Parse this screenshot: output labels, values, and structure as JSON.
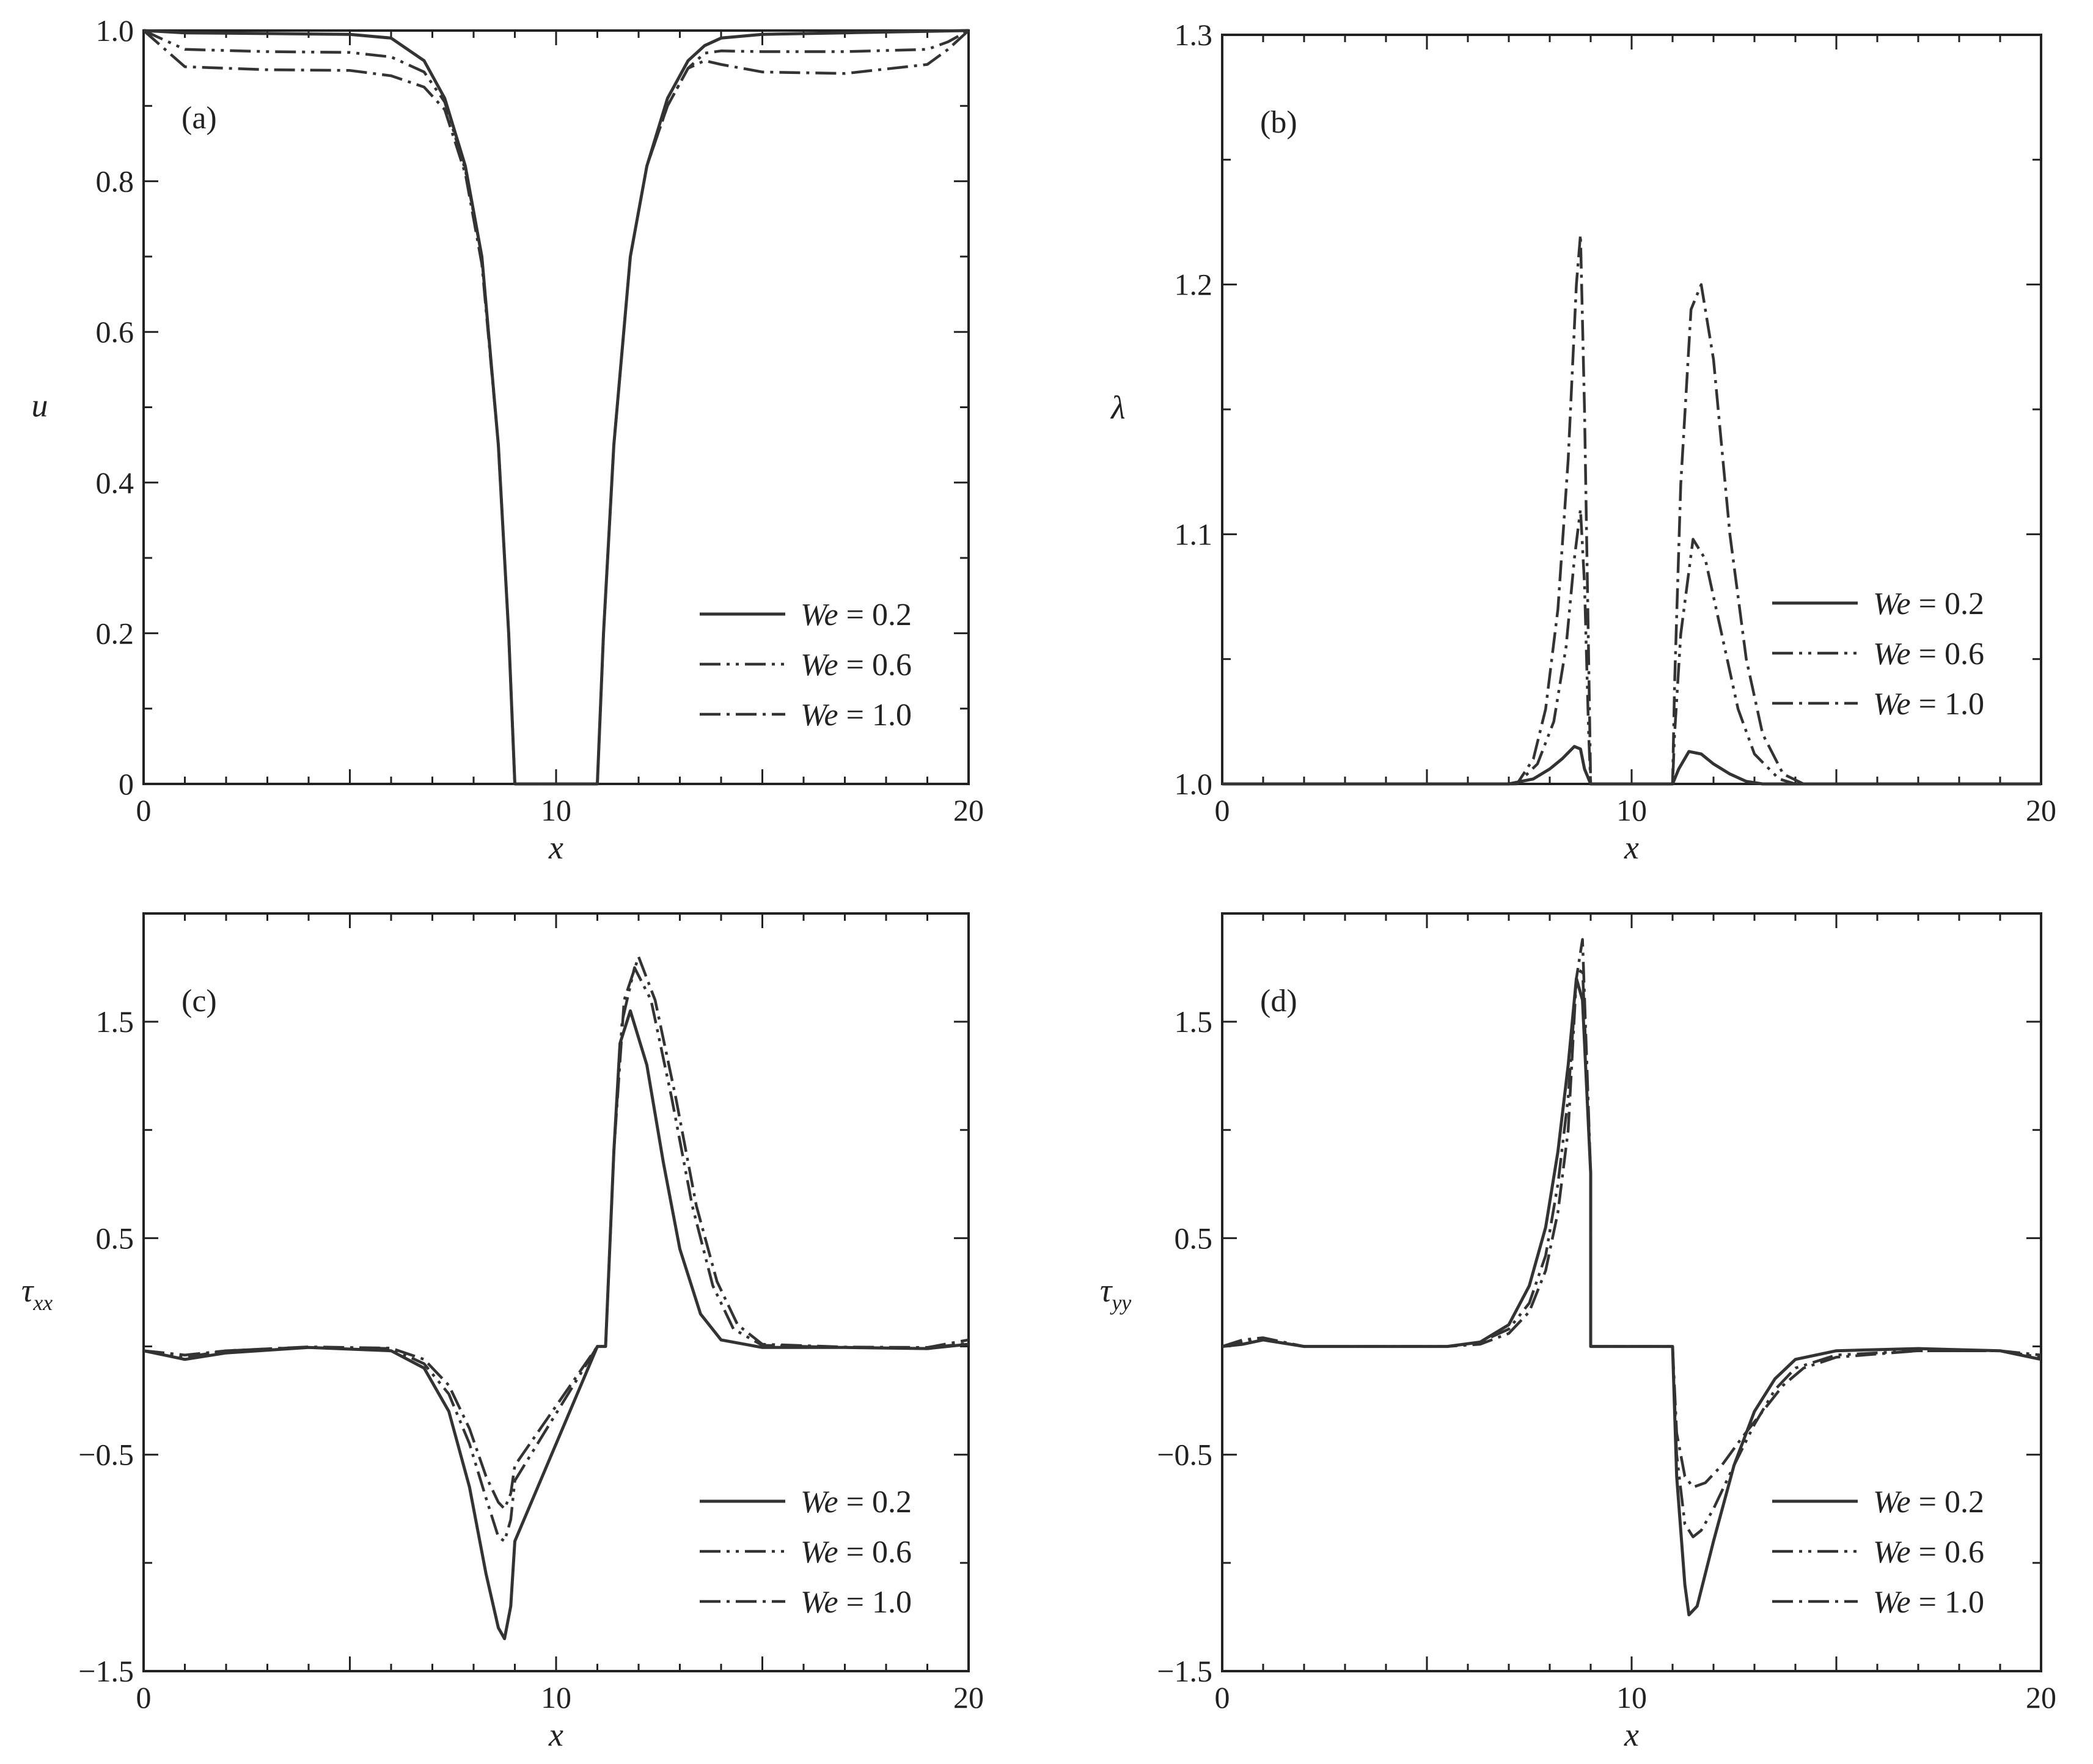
{
  "figure": {
    "legend_prefix": "We",
    "legend_separator": " = "
  },
  "chart_data": [
    {
      "type": "line",
      "panel_label": "(a)",
      "xlabel": "x",
      "ylabel": "u",
      "xlim": [
        0,
        20
      ],
      "ylim": [
        0,
        1.0
      ],
      "xticks": [
        0,
        10,
        20
      ],
      "yticks": [
        0,
        0.2,
        0.4,
        0.6,
        0.8,
        1.0
      ],
      "xtick_labels": [
        "0",
        "10",
        "20"
      ],
      "ytick_labels": [
        "0",
        "0.2",
        "0.4",
        "0.6",
        "0.8",
        "1.0"
      ],
      "legend_position": "bottom-right",
      "grid": false,
      "series": [
        {
          "name": "0.2",
          "dash": "solid",
          "x": [
            0,
            1,
            3,
            5,
            6,
            6.8,
            7.3,
            7.8,
            8.2,
            8.6,
            8.85,
            9.0,
            11.0,
            11.15,
            11.4,
            11.8,
            12.2,
            12.7,
            13.2,
            13.6,
            14,
            15,
            17,
            19,
            20
          ],
          "y": [
            1.0,
            0.997,
            0.996,
            0.995,
            0.99,
            0.96,
            0.91,
            0.82,
            0.7,
            0.45,
            0.2,
            0.0,
            0.0,
            0.2,
            0.45,
            0.7,
            0.82,
            0.91,
            0.96,
            0.98,
            0.99,
            0.995,
            0.997,
            0.999,
            1.0
          ]
        },
        {
          "name": "0.6",
          "dash": "dashdotdot",
          "x": [
            0,
            1,
            3,
            5,
            6,
            6.8,
            7.3,
            7.8,
            8.2,
            8.6,
            8.85,
            9.0,
            11.0,
            11.15,
            11.4,
            11.8,
            12.2,
            12.7,
            13.2,
            13.6,
            14,
            15,
            17,
            19,
            19.5,
            20
          ],
          "y": [
            1.0,
            0.975,
            0.972,
            0.971,
            0.965,
            0.945,
            0.905,
            0.815,
            0.7,
            0.45,
            0.2,
            0.0,
            0.0,
            0.2,
            0.45,
            0.7,
            0.82,
            0.9,
            0.95,
            0.97,
            0.973,
            0.972,
            0.972,
            0.975,
            0.985,
            1.0
          ]
        },
        {
          "name": "1.0",
          "dash": "dashdot",
          "x": [
            0,
            1,
            3,
            5,
            6,
            6.8,
            7.3,
            7.8,
            8.2,
            8.6,
            8.85,
            9.0,
            11.0,
            11.15,
            11.4,
            11.8,
            12.2,
            12.7,
            13.2,
            13.6,
            14,
            15,
            17,
            19,
            19.5,
            20
          ],
          "y": [
            1.0,
            0.952,
            0.948,
            0.947,
            0.94,
            0.925,
            0.895,
            0.81,
            0.69,
            0.45,
            0.2,
            0.0,
            0.0,
            0.2,
            0.45,
            0.7,
            0.82,
            0.9,
            0.95,
            0.96,
            0.955,
            0.945,
            0.943,
            0.955,
            0.975,
            1.0
          ]
        }
      ]
    },
    {
      "type": "line",
      "panel_label": "(b)",
      "xlabel": "x",
      "ylabel": "λ",
      "xlim": [
        0,
        20
      ],
      "ylim": [
        1.0,
        1.3
      ],
      "xticks": [
        0,
        10,
        20
      ],
      "yticks": [
        1.0,
        1.1,
        1.2,
        1.3
      ],
      "xtick_labels": [
        "0",
        "10",
        "20"
      ],
      "ytick_labels": [
        "1.0",
        "1.1",
        "1.2",
        "1.3"
      ],
      "legend_position": "right",
      "grid": false,
      "series": [
        {
          "name": "0.2",
          "dash": "solid",
          "x": [
            0,
            7.0,
            7.6,
            8.0,
            8.3,
            8.6,
            8.75,
            8.85,
            9.0,
            9.0,
            11.0,
            11.0,
            11.15,
            11.4,
            11.7,
            12.0,
            12.4,
            12.8,
            13.2,
            20
          ],
          "y": [
            1.0,
            1.0,
            1.002,
            1.006,
            1.01,
            1.015,
            1.014,
            1.006,
            1.0,
            1.0,
            1.0,
            1.0,
            1.006,
            1.013,
            1.012,
            1.008,
            1.004,
            1.001,
            1.0,
            1.0
          ]
        },
        {
          "name": "0.6",
          "dash": "dashdotdot",
          "x": [
            0,
            7.2,
            7.7,
            8.1,
            8.4,
            8.6,
            8.75,
            8.85,
            8.95,
            9.0,
            11.0,
            11.05,
            11.2,
            11.5,
            11.8,
            12.2,
            12.6,
            13.0,
            13.6,
            14.0,
            20
          ],
          "y": [
            1.0,
            1.0,
            1.008,
            1.025,
            1.055,
            1.09,
            1.11,
            1.08,
            1.02,
            1.0,
            1.0,
            1.02,
            1.06,
            1.098,
            1.09,
            1.06,
            1.03,
            1.012,
            1.002,
            1.0,
            1.0
          ]
        },
        {
          "name": "1.0",
          "dash": "dashdot",
          "x": [
            0,
            7.2,
            7.6,
            7.9,
            8.2,
            8.45,
            8.65,
            8.75,
            8.85,
            8.95,
            9.0,
            11.0,
            11.05,
            11.2,
            11.45,
            11.7,
            12.0,
            12.4,
            12.8,
            13.2,
            13.7,
            14.2,
            20
          ],
          "y": [
            1.0,
            1.0,
            1.01,
            1.03,
            1.07,
            1.13,
            1.2,
            1.22,
            1.15,
            1.05,
            1.0,
            1.0,
            1.04,
            1.12,
            1.19,
            1.2,
            1.17,
            1.1,
            1.05,
            1.02,
            1.004,
            1.0,
            1.0
          ]
        }
      ]
    },
    {
      "type": "line",
      "panel_label": "(c)",
      "xlabel": "x",
      "ylabel": "τ_xx",
      "ylabel_main": "τ",
      "ylabel_sub": "xx",
      "xlim": [
        0,
        20
      ],
      "ylim": [
        -1.5,
        2.0
      ],
      "xticks": [
        0,
        10,
        20
      ],
      "yticks": [
        -1.5,
        -0.5,
        0.5,
        1.5
      ],
      "xtick_labels": [
        "0",
        "10",
        "20"
      ],
      "ytick_labels": [
        "−1.5",
        "−0.5",
        "0.5",
        "1.5"
      ],
      "legend_position": "bottom-right",
      "grid": false,
      "series": [
        {
          "name": "0.2",
          "dash": "solid",
          "x": [
            0,
            0.5,
            1,
            2,
            4,
            6,
            6.8,
            7.4,
            7.9,
            8.3,
            8.6,
            8.75,
            8.9,
            9.0,
            11.0,
            11.2,
            11.4,
            11.55,
            11.8,
            12.2,
            12.6,
            13.0,
            13.5,
            14.0,
            15,
            17,
            19,
            20
          ],
          "y": [
            -0.02,
            -0.04,
            -0.06,
            -0.03,
            -0.005,
            -0.02,
            -0.1,
            -0.3,
            -0.65,
            -1.05,
            -1.3,
            -1.35,
            -1.2,
            -0.9,
            0.0,
            0.0,
            0.9,
            1.4,
            1.55,
            1.3,
            0.85,
            0.45,
            0.15,
            0.03,
            -0.005,
            -0.005,
            -0.01,
            0.01
          ]
        },
        {
          "name": "0.6",
          "dash": "dashdotdot",
          "x": [
            0,
            0.5,
            1,
            2,
            4,
            6,
            6.8,
            7.4,
            7.9,
            8.3,
            8.6,
            8.75,
            8.9,
            9.0,
            11.0,
            11.2,
            11.4,
            11.6,
            11.9,
            12.3,
            12.8,
            13.3,
            13.8,
            14.3,
            15,
            17,
            19,
            20
          ],
          "y": [
            -0.02,
            -0.03,
            -0.05,
            -0.02,
            -0.003,
            -0.01,
            -0.08,
            -0.22,
            -0.45,
            -0.7,
            -0.88,
            -0.9,
            -0.8,
            -0.62,
            0.0,
            0.0,
            0.9,
            1.5,
            1.75,
            1.6,
            1.15,
            0.65,
            0.28,
            0.08,
            0.005,
            -0.005,
            -0.008,
            0.015
          ]
        },
        {
          "name": "1.0",
          "dash": "dashdot",
          "x": [
            0,
            0.5,
            1,
            2,
            4,
            6,
            6.8,
            7.4,
            7.9,
            8.3,
            8.6,
            8.75,
            8.9,
            9.0,
            11.0,
            11.2,
            11.4,
            11.65,
            12.0,
            12.4,
            12.9,
            13.4,
            13.9,
            14.4,
            15,
            17,
            19,
            20
          ],
          "y": [
            -0.02,
            -0.03,
            -0.04,
            -0.02,
            -0.002,
            -0.008,
            -0.06,
            -0.18,
            -0.38,
            -0.6,
            -0.72,
            -0.75,
            -0.68,
            -0.55,
            0.0,
            0.0,
            0.9,
            1.6,
            1.8,
            1.6,
            1.15,
            0.65,
            0.3,
            0.1,
            0.01,
            -0.003,
            -0.005,
            0.03
          ]
        }
      ]
    },
    {
      "type": "line",
      "panel_label": "(d)",
      "xlabel": "x",
      "ylabel": "τ_yy",
      "ylabel_main": "τ",
      "ylabel_sub": "yy",
      "xlim": [
        0,
        20
      ],
      "ylim": [
        -1.5,
        2.0
      ],
      "xticks": [
        0,
        10,
        20
      ],
      "yticks": [
        -1.5,
        -0.5,
        0.5,
        1.5
      ],
      "xtick_labels": [
        "0",
        "10",
        "20"
      ],
      "ytick_labels": [
        "−1.5",
        "−0.5",
        "0.5",
        "1.5"
      ],
      "legend_position": "bottom-right",
      "grid": false,
      "series": [
        {
          "name": "0.2",
          "dash": "solid",
          "x": [
            0,
            0.5,
            1,
            2,
            4,
            5.5,
            6.3,
            7.0,
            7.5,
            7.9,
            8.2,
            8.45,
            8.65,
            8.8,
            9.0,
            9.0,
            11.0,
            11.1,
            11.3,
            11.4,
            11.6,
            12.0,
            12.5,
            13.0,
            13.5,
            14.0,
            15,
            17,
            19,
            20
          ],
          "y": [
            0.0,
            0.01,
            0.03,
            0.0,
            0.0,
            0.0,
            0.02,
            0.1,
            0.28,
            0.55,
            0.9,
            1.3,
            1.7,
            1.6,
            0.8,
            0.0,
            0.0,
            -0.6,
            -1.1,
            -1.24,
            -1.2,
            -0.9,
            -0.55,
            -0.3,
            -0.15,
            -0.06,
            -0.02,
            -0.01,
            -0.02,
            -0.06
          ]
        },
        {
          "name": "0.6",
          "dash": "dashdotdot",
          "x": [
            0,
            0.5,
            1,
            2,
            4,
            5.5,
            6.3,
            7.0,
            7.5,
            7.9,
            8.2,
            8.45,
            8.65,
            8.8,
            9.0,
            9.0,
            11.0,
            11.1,
            11.3,
            11.5,
            11.7,
            12.0,
            12.5,
            13.0,
            13.5,
            14.0,
            15,
            17,
            19,
            20
          ],
          "y": [
            0.0,
            0.02,
            0.03,
            0.0,
            0.0,
            0.0,
            0.02,
            0.08,
            0.2,
            0.42,
            0.75,
            1.15,
            1.7,
            1.75,
            0.8,
            0.0,
            0.0,
            -0.5,
            -0.82,
            -0.88,
            -0.85,
            -0.75,
            -0.55,
            -0.36,
            -0.2,
            -0.1,
            -0.04,
            -0.02,
            -0.02,
            -0.05
          ]
        },
        {
          "name": "1.0",
          "dash": "dashdot",
          "x": [
            0,
            0.5,
            1,
            2,
            4,
            5.5,
            6.3,
            7.0,
            7.5,
            7.9,
            8.2,
            8.45,
            8.65,
            8.8,
            9.0,
            9.0,
            11.0,
            11.1,
            11.3,
            11.5,
            11.8,
            12.2,
            12.7,
            13.2,
            13.7,
            14.2,
            15,
            17,
            19,
            20
          ],
          "y": [
            0.0,
            0.03,
            0.04,
            0.0,
            0.0,
            0.0,
            0.01,
            0.06,
            0.16,
            0.35,
            0.62,
            1.0,
            1.7,
            1.88,
            0.8,
            0.0,
            0.0,
            -0.4,
            -0.6,
            -0.65,
            -0.63,
            -0.55,
            -0.42,
            -0.3,
            -0.18,
            -0.1,
            -0.05,
            -0.02,
            -0.02,
            -0.04
          ]
        }
      ]
    }
  ]
}
